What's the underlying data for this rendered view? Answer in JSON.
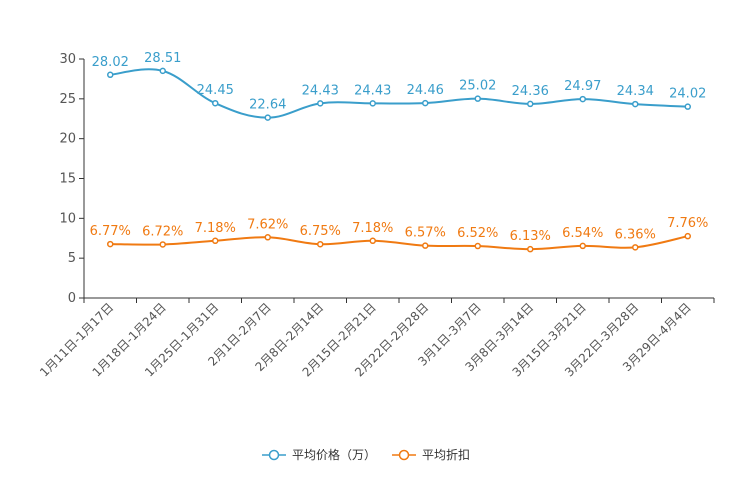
{
  "chart_data": {
    "type": "line",
    "categories": [
      "1月11日-1月17日",
      "1月18日-1月24日",
      "1月25日-1月31日",
      "2月1日-2月7日",
      "2月8日-2月14日",
      "2月15日-2月21日",
      "2月22日-2月28日",
      "3月1日-3月7日",
      "3月8日-3月14日",
      "3月15日-3月21日",
      "3月22日-3月28日",
      "3月29日-4月4日"
    ],
    "ylim": [
      0,
      30
    ],
    "yticks": [
      0,
      5,
      10,
      15,
      20,
      25,
      30
    ],
    "grid": false,
    "smooth": true,
    "legend_position": "bottom",
    "series": [
      {
        "name": "平均价格（万）",
        "color": "#3a9ecb",
        "values": [
          28.02,
          28.51,
          24.45,
          22.64,
          24.43,
          24.43,
          24.46,
          25.02,
          24.36,
          24.97,
          24.34,
          24.02
        ],
        "labels": [
          "28.02",
          "28.51",
          "24.45",
          "22.64",
          "24.43",
          "24.43",
          "24.46",
          "25.02",
          "24.36",
          "24.97",
          "24.34",
          "24.02"
        ]
      },
      {
        "name": "平均折扣",
        "color": "#f07a12",
        "values": [
          6.77,
          6.72,
          7.18,
          7.62,
          6.75,
          7.18,
          6.57,
          6.52,
          6.13,
          6.54,
          6.36,
          7.76
        ],
        "labels": [
          "6.77%",
          "6.72%",
          "7.18%",
          "7.62%",
          "6.75%",
          "7.18%",
          "6.57%",
          "6.52%",
          "6.13%",
          "6.54%",
          "6.36%",
          "7.76%"
        ]
      }
    ]
  }
}
